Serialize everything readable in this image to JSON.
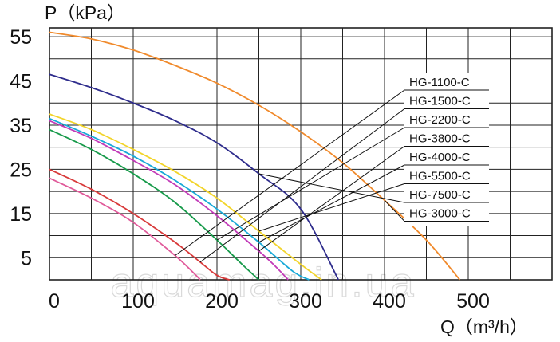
{
  "chart_data": {
    "type": "line",
    "ylabel": "P（kPa）",
    "xlabel": "Q（m³/h）",
    "xlim": [
      0,
      600
    ],
    "ylim": [
      0,
      57
    ],
    "x_ticks": [
      "0",
      "100",
      "200",
      "300",
      "400",
      "500"
    ],
    "y_ticks": [
      "5",
      "15",
      "25",
      "35",
      "45",
      "55"
    ],
    "grid": true,
    "legend_position": "right",
    "watermark": "aquamag.in.ua",
    "series": [
      {
        "name": "HG-1100-C",
        "color": "#e05a9a",
        "x": [
          0,
          50,
          100,
          150,
          175,
          180
        ],
        "y": [
          23,
          18.5,
          13,
          5.5,
          1,
          0
        ]
      },
      {
        "name": "HG-1500-C",
        "color": "#d83a3a",
        "x": [
          0,
          50,
          100,
          150,
          180,
          200,
          215
        ],
        "y": [
          25,
          20.5,
          15,
          8.5,
          4,
          1,
          0
        ]
      },
      {
        "name": "HG-2200-C",
        "color": "#179a4a",
        "x": [
          0,
          50,
          100,
          150,
          200,
          230,
          250
        ],
        "y": [
          34,
          29.5,
          24,
          17.5,
          9,
          3.5,
          0
        ]
      },
      {
        "name": "HG-3800-C",
        "color": "#c23bb8",
        "x": [
          0,
          50,
          100,
          150,
          200,
          250,
          270,
          285
        ],
        "y": [
          36,
          32,
          27,
          21.5,
          14.5,
          6.5,
          3,
          0
        ]
      },
      {
        "name": "HG-4000-C",
        "color": "#18a9d8",
        "x": [
          0,
          50,
          100,
          150,
          200,
          250,
          290,
          310
        ],
        "y": [
          36.5,
          32.5,
          28,
          22.5,
          16,
          8.5,
          2,
          0
        ]
      },
      {
        "name": "HG-5500-C",
        "color": "#f2d42a",
        "x": [
          0,
          50,
          100,
          150,
          200,
          250,
          300,
          325
        ],
        "y": [
          37.5,
          34,
          29.5,
          24.5,
          18.5,
          11,
          3.5,
          0
        ]
      },
      {
        "name": "HG-7500-C",
        "color": "#2e2c8c",
        "x": [
          0,
          50,
          100,
          150,
          200,
          250,
          300,
          345
        ],
        "y": [
          46.5,
          43.5,
          40,
          36,
          31,
          24,
          16,
          0
        ]
      },
      {
        "name": "HG-3000-C",
        "color": "#f08a2c",
        "x": [
          0,
          50,
          100,
          150,
          200,
          250,
          300,
          350,
          400,
          450,
          490
        ],
        "y": [
          56,
          54.5,
          52,
          48.5,
          44.5,
          39.5,
          33.5,
          26.5,
          18,
          9,
          0
        ]
      }
    ]
  }
}
